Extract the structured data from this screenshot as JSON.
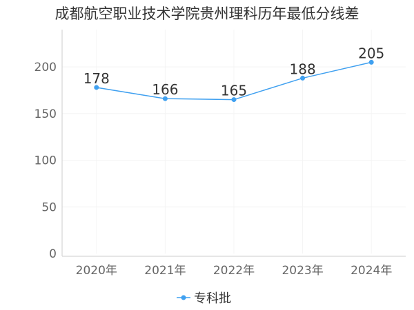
{
  "chart_data": {
    "type": "line",
    "title": "成都航空职业技术学院贵州理科历年最低分线差",
    "categories": [
      "2020年",
      "2021年",
      "2022年",
      "2023年",
      "2024年"
    ],
    "series": [
      {
        "name": "专科批",
        "values": [
          178,
          166,
          165,
          188,
          205
        ]
      }
    ],
    "ylim": [
      0,
      240
    ],
    "yticks": [
      0,
      50,
      100,
      150,
      200
    ],
    "grid": true,
    "legend": "bottom-center",
    "color": "#3fa0f0"
  }
}
